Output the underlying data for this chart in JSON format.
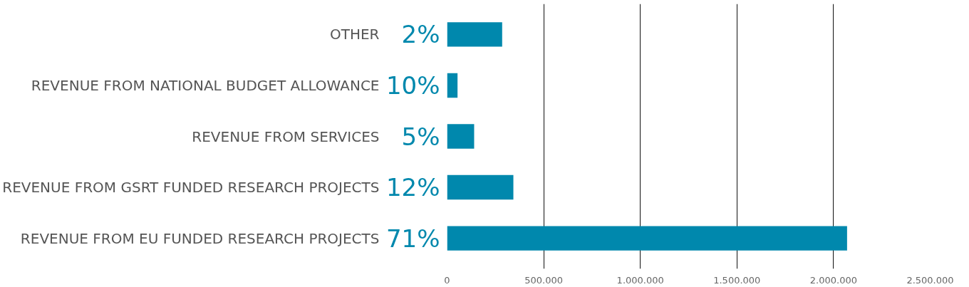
{
  "chart_data": {
    "type": "bar",
    "orientation": "horizontal",
    "categories": [
      "OTHER",
      "REVENUE FROM NATIONAL BUDGET ALLOWANCE",
      "REVENUE FROM SERVICES",
      "REVENUE FROM GSRT FUNDED RESEARCH PROJECTS",
      "REVENUE FROM EU FUNDED RESEARCH PROJECTS"
    ],
    "values": [
      285000,
      54000,
      140000,
      343000,
      2070000
    ],
    "annotations": [
      "2%",
      "10%",
      "5%",
      "12%",
      "71%"
    ],
    "color": "#0088ad",
    "xlim": [
      0,
      2500000
    ],
    "xticks": [
      0,
      {
        "value": 500000,
        "label": "500.000"
      },
      {
        "value": 1000000,
        "label": "1.000.000"
      },
      {
        "value": 1500000,
        "label": "1.500.000"
      },
      {
        "value": 2000000,
        "label": "2.000.000"
      },
      {
        "value": 2500000,
        "label": "2.500.000"
      }
    ],
    "grid": "x"
  }
}
